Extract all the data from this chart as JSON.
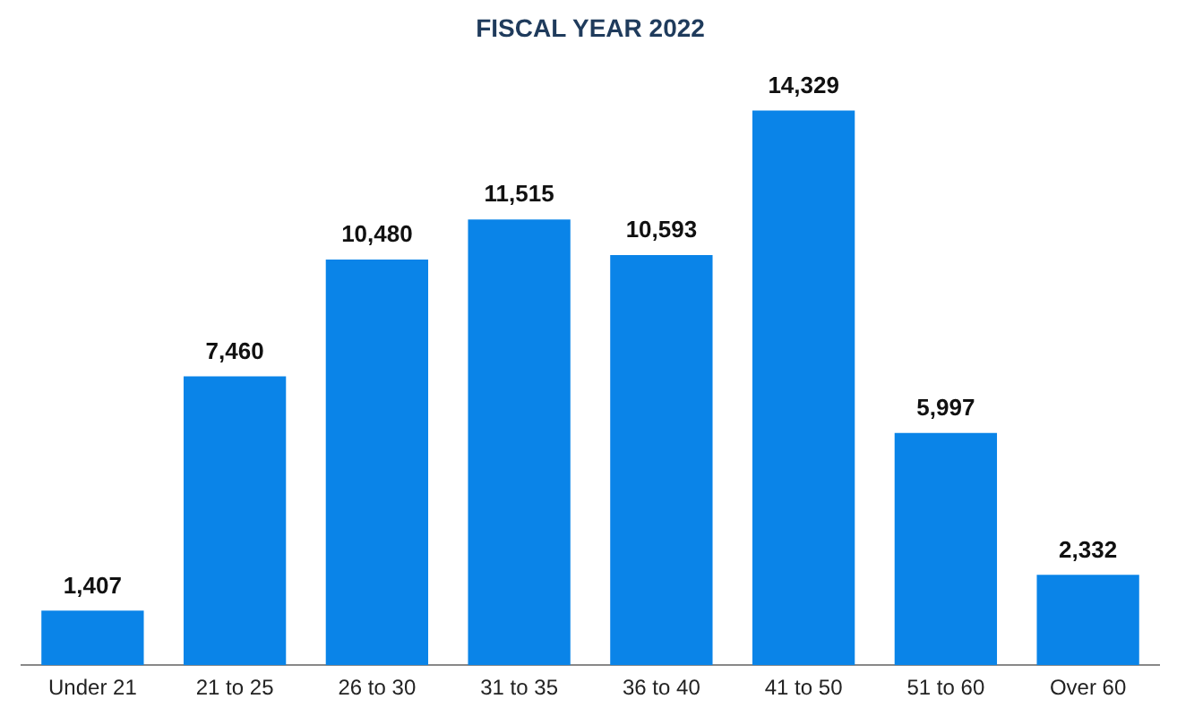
{
  "chart_data": {
    "type": "bar",
    "title": "FISCAL YEAR 2022",
    "categories": [
      "Under 21",
      "21 to 25",
      "26 to 30",
      "31 to 35",
      "36 to 40",
      "41 to 50",
      "51 to 60",
      "Over 60"
    ],
    "values": [
      1407,
      7460,
      10480,
      11515,
      10593,
      14329,
      5997,
      2332
    ],
    "value_labels": [
      "1,407",
      "7,460",
      "10,480",
      "11,515",
      "10,593",
      "14,329",
      "5,997",
      "2,332"
    ],
    "color": "#0a84e8",
    "grid": false,
    "legend": false
  }
}
